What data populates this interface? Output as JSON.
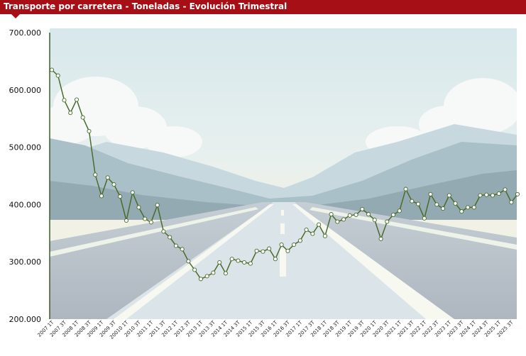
{
  "header": {
    "title": "Transporte por carretera - Toneladas - Evolución Trimestral"
  },
  "colors": {
    "title_bg": "#a50f15",
    "line": "#4a6b2a",
    "marker_fill": "#ffffff"
  },
  "background_picture": "mountain-highway-illustration",
  "chart_data": {
    "type": "line",
    "title": "Transporte por carretera - Toneladas - Evolución Trimestral",
    "xlabel": "",
    "ylabel": "",
    "ylim": [
      200000,
      700000
    ],
    "yticks": [
      200000,
      300000,
      400000,
      500000,
      600000,
      700000
    ],
    "ytick_labels": [
      "200.000",
      "300.000",
      "400.000",
      "500.000",
      "600.000",
      "700.000"
    ],
    "grid": false,
    "legend": "none",
    "xtick_labels": [
      "2007 1T",
      "2007 3T",
      "2008 1T",
      "2008 3T",
      "2009 1T",
      "2009 3T",
      "20010 1T",
      "2010 3T",
      "2011 1T",
      "2011 3T",
      "2012 1T",
      "2012 3T",
      "2013 1T",
      "2013 3T",
      "2014 1T",
      "2014 3T",
      "2015 1T",
      "2015 3T",
      "2016 1T",
      "2016 3T",
      "2017 1T",
      "2017 3T",
      "2018 1T",
      "2018 3T",
      "2019 1T",
      "2019 3T",
      "2020 1T",
      "2020 3T",
      "2021 1T",
      "2021 3T",
      "2022 1T",
      "2022 3T",
      "2023 1T",
      "2023 3T",
      "2024 1T",
      "2024 3T",
      "2025 1T",
      "2025 3T"
    ],
    "series": [
      {
        "values": [
          635000,
          625000,
          582000,
          560000,
          583000,
          552000,
          528000,
          452000,
          415000,
          447000,
          435000,
          414000,
          372000,
          421000,
          395000,
          375000,
          369000,
          399000,
          353000,
          343000,
          328000,
          322000,
          301000,
          286000,
          270000,
          275000,
          281000,
          299000,
          280000,
          305000,
          302000,
          299000,
          297000,
          319000,
          318000,
          323000,
          305000,
          330000,
          319000,
          330000,
          337000,
          356000,
          349000,
          365000,
          345000,
          383000,
          370000,
          374000,
          381000,
          382000,
          392000,
          383000,
          373000,
          340000,
          370000,
          382000,
          389000,
          427000,
          406000,
          401000,
          376000,
          418000,
          400000,
          393000,
          416000,
          402000,
          388000,
          395000,
          395000,
          416000,
          417000,
          416000,
          419000,
          426000,
          404000,
          418000
        ]
      }
    ]
  }
}
